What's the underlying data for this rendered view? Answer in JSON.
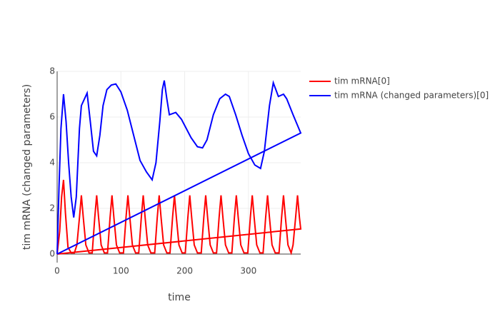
{
  "chart_data": {
    "type": "line",
    "x_label": "time",
    "y_label": "tim mRNA (changed parameters)",
    "xlim": [
      0,
      382
    ],
    "ylim": [
      0,
      8
    ],
    "xticks": [
      0,
      100,
      200,
      300
    ],
    "yticks": [
      0,
      2,
      4,
      6,
      8
    ],
    "grid": true,
    "legend": "top-right",
    "series": [
      {
        "name": "tim mRNA[0]",
        "color": "#ff0000",
        "x": [
          0,
          4,
          7,
          10,
          13,
          17,
          22,
          27,
          31,
          35,
          38,
          41,
          45,
          50,
          55,
          59,
          62,
          65,
          69,
          74,
          79,
          83,
          86,
          89,
          93,
          98,
          104,
          108,
          111,
          114,
          118,
          123,
          128,
          132,
          135,
          138,
          142,
          147,
          153,
          157,
          160,
          163,
          167,
          172,
          177,
          181,
          184,
          187,
          191,
          196,
          201,
          205,
          208,
          211,
          215,
          220,
          226,
          230,
          233,
          236,
          240,
          245,
          250,
          254,
          257,
          260,
          264,
          269,
          274,
          278,
          281,
          284,
          288,
          293,
          299,
          303,
          306,
          309,
          313,
          318,
          323,
          327,
          330,
          333,
          337,
          342,
          348,
          352,
          355,
          358,
          362,
          367,
          370,
          374,
          377,
          380,
          382,
          0
        ],
        "values": [
          0,
          1.0,
          2.5,
          3.25,
          1.8,
          0.3,
          0.05,
          0.05,
          0.4,
          1.6,
          2.57,
          1.6,
          0.4,
          0.05,
          0.05,
          1.6,
          2.57,
          1.6,
          0.4,
          0.05,
          0.05,
          1.6,
          2.57,
          1.6,
          0.4,
          0.05,
          0.05,
          1.6,
          2.57,
          1.6,
          0.4,
          0.05,
          0.05,
          1.6,
          2.57,
          1.6,
          0.4,
          0.05,
          0.05,
          1.6,
          2.57,
          1.6,
          0.4,
          0.05,
          0.05,
          1.6,
          2.57,
          1.6,
          0.4,
          0.05,
          0.05,
          1.6,
          2.57,
          1.6,
          0.4,
          0.05,
          0.05,
          1.6,
          2.57,
          1.6,
          0.4,
          0.05,
          0.05,
          1.6,
          2.57,
          1.6,
          0.4,
          0.05,
          0.05,
          1.6,
          2.57,
          1.6,
          0.4,
          0.05,
          0.05,
          1.6,
          2.57,
          1.6,
          0.4,
          0.05,
          0.05,
          1.6,
          2.57,
          1.6,
          0.4,
          0.05,
          0.05,
          1.6,
          2.57,
          1.6,
          0.4,
          0.05,
          0.4,
          1.6,
          2.57,
          1.6,
          1.1,
          0
        ]
      },
      {
        "name": "tim mRNA (changed parameters)[0]",
        "color": "#0000ff",
        "x": [
          0,
          3,
          6,
          10,
          14,
          18,
          22,
          26,
          30,
          35,
          38,
          47,
          52,
          57,
          62,
          67,
          72,
          78,
          85,
          92,
          100,
          110,
          120,
          130,
          140,
          149,
          155,
          161,
          165,
          168,
          172,
          176,
          186,
          195,
          210,
          220,
          228,
          235,
          245,
          255,
          264,
          270,
          280,
          290,
          300,
          310,
          319,
          325,
          333,
          339,
          347,
          355,
          360,
          370,
          382,
          0
        ],
        "values": [
          0,
          3,
          5.5,
          7.0,
          5.8,
          4.0,
          2.5,
          1.6,
          2.5,
          5.5,
          6.5,
          7.05,
          5.8,
          4.5,
          4.3,
          5.2,
          6.5,
          7.2,
          7.4,
          7.45,
          7.1,
          6.3,
          5.2,
          4.1,
          3.6,
          3.25,
          4.0,
          5.8,
          7.2,
          7.6,
          6.8,
          6.1,
          6.2,
          5.9,
          5.1,
          4.7,
          4.65,
          5.0,
          6.1,
          6.8,
          7.0,
          6.9,
          6.1,
          5.2,
          4.4,
          3.9,
          3.75,
          4.5,
          6.5,
          7.5,
          6.9,
          7.0,
          6.8,
          6.1,
          5.3,
          0
        ]
      }
    ]
  }
}
